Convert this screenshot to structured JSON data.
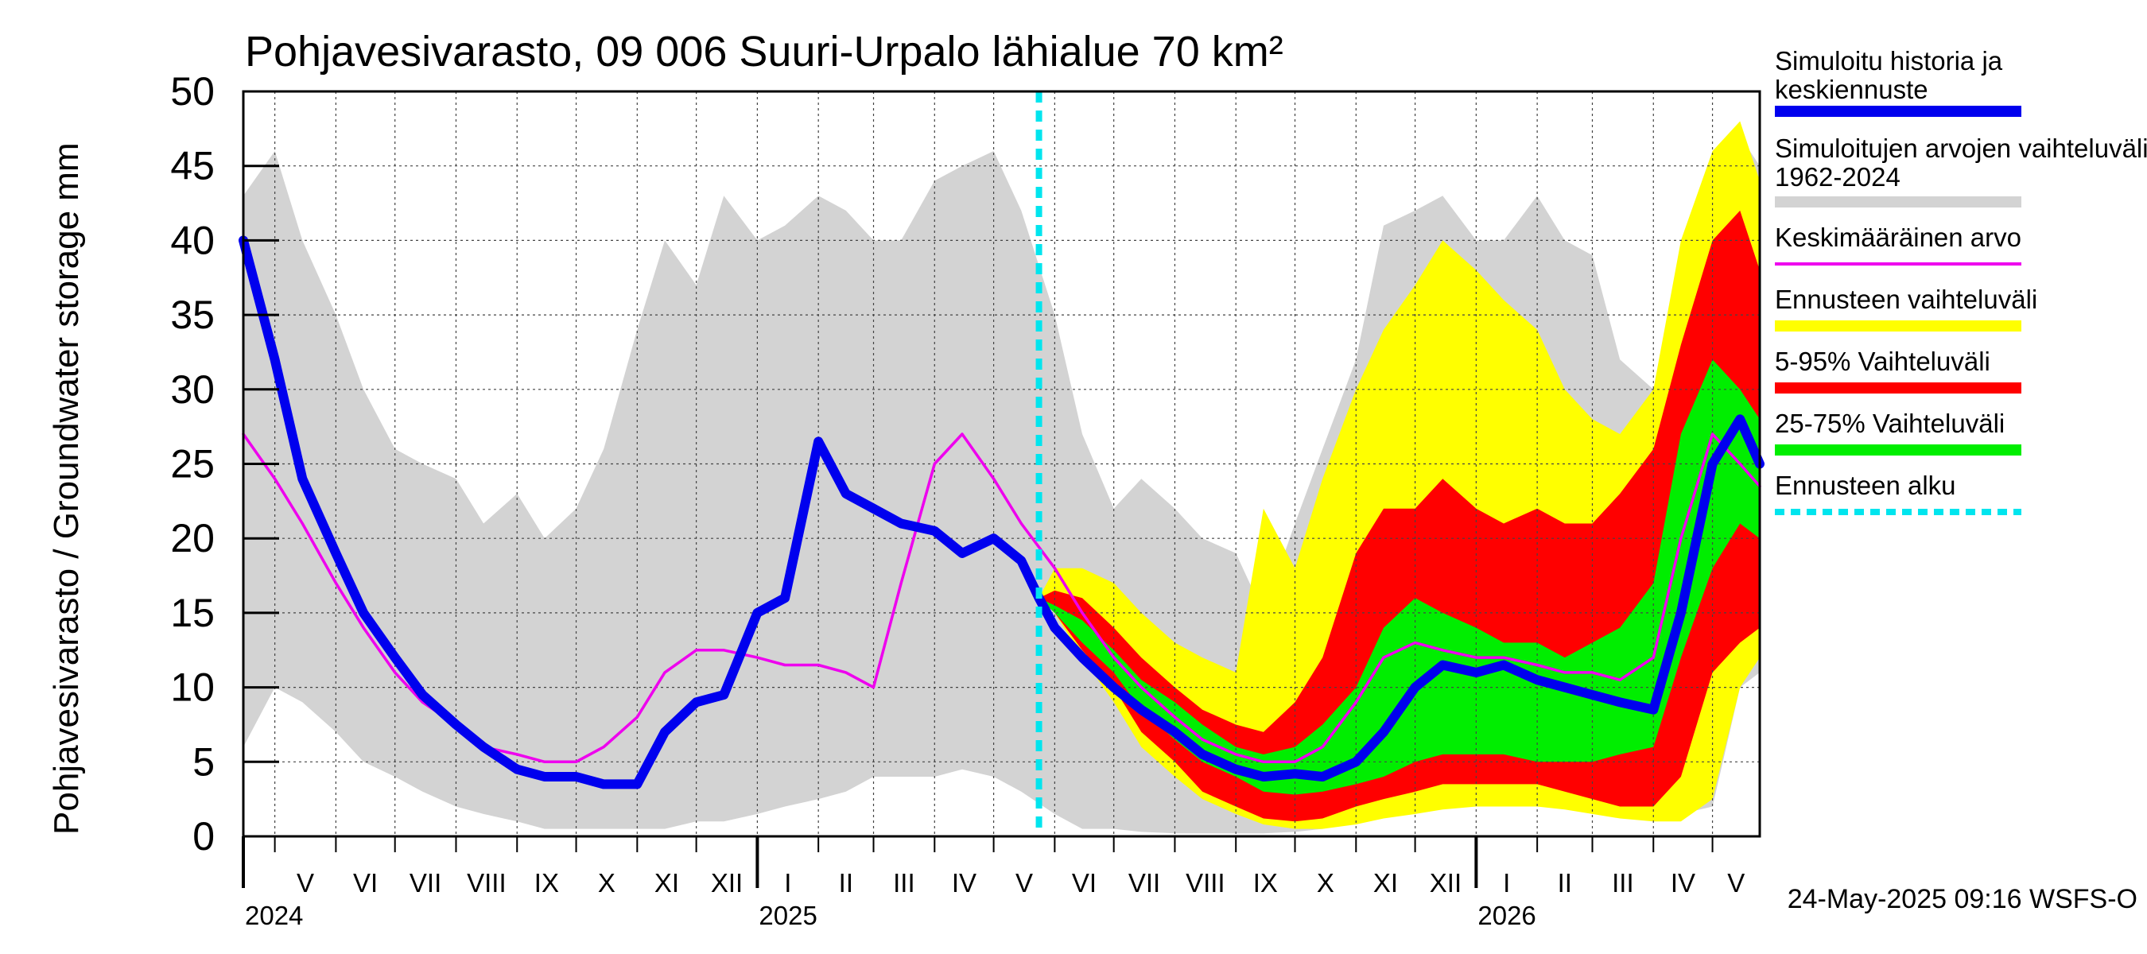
{
  "chart_data": {
    "type": "area",
    "title": "Pohjavesivarasto, 09 006 Suuri-Urpalo lähialue 70 km²",
    "ylabel": "Pohjavesivarasto / Groundwater storage   mm",
    "ylim": [
      0,
      50
    ],
    "yticks": [
      0,
      5,
      10,
      15,
      20,
      25,
      30,
      35,
      40,
      45,
      50
    ],
    "xlim": [
      "2024-04-15",
      "2026-05-25"
    ],
    "months": [
      {
        "label": "V",
        "start": "2024-05-01",
        "end": "2024-06-01"
      },
      {
        "label": "VI",
        "start": "2024-06-01",
        "end": "2024-07-01"
      },
      {
        "label": "VII",
        "start": "2024-07-01",
        "end": "2024-08-01"
      },
      {
        "label": "VIII",
        "start": "2024-08-01",
        "end": "2024-09-01"
      },
      {
        "label": "IX",
        "start": "2024-09-01",
        "end": "2024-10-01"
      },
      {
        "label": "X",
        "start": "2024-10-01",
        "end": "2024-11-01"
      },
      {
        "label": "XI",
        "start": "2024-11-01",
        "end": "2024-12-01"
      },
      {
        "label": "XII",
        "start": "2024-12-01",
        "end": "2025-01-01"
      },
      {
        "label": "I",
        "start": "2025-01-01",
        "end": "2025-02-01"
      },
      {
        "label": "II",
        "start": "2025-02-01",
        "end": "2025-03-01"
      },
      {
        "label": "III",
        "start": "2025-03-01",
        "end": "2025-04-01"
      },
      {
        "label": "IV",
        "start": "2025-04-01",
        "end": "2025-05-01"
      },
      {
        "label": "V",
        "start": "2025-05-01",
        "end": "2025-06-01"
      },
      {
        "label": "VI",
        "start": "2025-06-01",
        "end": "2025-07-01"
      },
      {
        "label": "VII",
        "start": "2025-07-01",
        "end": "2025-08-01"
      },
      {
        "label": "VIII",
        "start": "2025-08-01",
        "end": "2025-09-01"
      },
      {
        "label": "IX",
        "start": "2025-09-01",
        "end": "2025-10-01"
      },
      {
        "label": "X",
        "start": "2025-10-01",
        "end": "2025-11-01"
      },
      {
        "label": "XI",
        "start": "2025-11-01",
        "end": "2025-12-01"
      },
      {
        "label": "XII",
        "start": "2025-12-01",
        "end": "2026-01-01"
      },
      {
        "label": "I",
        "start": "2026-01-01",
        "end": "2026-02-01"
      },
      {
        "label": "II",
        "start": "2026-02-01",
        "end": "2026-03-01"
      },
      {
        "label": "III",
        "start": "2026-03-01",
        "end": "2026-04-01"
      },
      {
        "label": "IV",
        "start": "2026-04-01",
        "end": "2026-05-01"
      },
      {
        "label": "V",
        "start": "2026-05-01",
        "end": "2026-05-25"
      }
    ],
    "years": [
      {
        "label": "2024",
        "date": "2024-04-15"
      },
      {
        "label": "2025",
        "date": "2025-01-01"
      },
      {
        "label": "2026",
        "date": "2026-01-01"
      }
    ],
    "forecast_start": "2025-05-24",
    "grid": true,
    "legend_position": "right",
    "timestamp": "24-May-2025 09:16 WSFS-O",
    "colors": {
      "history": "#0000ee",
      "range": "#d3d3d3",
      "mean": "#ee00ee",
      "forecast_range": "#ffff00",
      "p5_95": "#ff0000",
      "p25_75": "#00ee00",
      "forecast_start": "#00e5ee"
    },
    "legend": [
      {
        "key": "history",
        "label": "Simuloitu historia ja keskiennuste"
      },
      {
        "key": "range",
        "label": "Simuloitujen arvojen vaihteluväli 1962-2024"
      },
      {
        "key": "mean",
        "label": "Keskimääräinen arvo"
      },
      {
        "key": "forecast_range",
        "label": "Ennusteen vaihteluväli"
      },
      {
        "key": "p5_95",
        "label": "5-95% Vaihteluväli"
      },
      {
        "key": "p25_75",
        "label": "25-75% Vaihteluväli"
      },
      {
        "key": "forecast_start",
        "label": "Ennusteen alku"
      }
    ],
    "series": {
      "range": {
        "x": [
          "2024-04-15",
          "2024-05-01",
          "2024-05-15",
          "2024-06-01",
          "2024-06-15",
          "2024-07-01",
          "2024-07-15",
          "2024-08-01",
          "2024-08-15",
          "2024-09-01",
          "2024-09-15",
          "2024-10-01",
          "2024-10-15",
          "2024-11-01",
          "2024-11-15",
          "2024-12-01",
          "2024-12-15",
          "2025-01-01",
          "2025-01-15",
          "2025-02-01",
          "2025-02-15",
          "2025-03-01",
          "2025-03-15",
          "2025-04-01",
          "2025-04-15",
          "2025-05-01",
          "2025-05-15",
          "2025-06-01",
          "2025-06-15",
          "2025-07-01",
          "2025-07-15",
          "2025-08-01",
          "2025-08-15",
          "2025-09-01",
          "2025-09-15",
          "2025-10-01",
          "2025-10-15",
          "2025-11-01",
          "2025-11-15",
          "2025-12-01",
          "2025-12-15",
          "2026-01-01",
          "2026-01-15",
          "2026-02-01",
          "2026-02-15",
          "2026-03-01",
          "2026-03-15",
          "2026-04-01",
          "2026-04-15",
          "2026-05-01",
          "2026-05-15",
          "2026-05-25"
        ],
        "lower": [
          6,
          10,
          9,
          7,
          5,
          4,
          3,
          2,
          1.5,
          1,
          0.5,
          0.5,
          0.5,
          0.5,
          0.5,
          1,
          1,
          1.5,
          2,
          2.5,
          3,
          4,
          4,
          4,
          4.5,
          4,
          3,
          1.5,
          0.5,
          0.5,
          0.3,
          0.2,
          0.2,
          0.2,
          0.2,
          0.3,
          0.5,
          1,
          1.5,
          2,
          2,
          2,
          2,
          2,
          2,
          2,
          1.5,
          1.5,
          1.5,
          2,
          10,
          11
        ],
        "upper": [
          43,
          46,
          40,
          35,
          30,
          26,
          25,
          24,
          21,
          23,
          20,
          22,
          26,
          34,
          40,
          37,
          43,
          40,
          41,
          43,
          42,
          40,
          40,
          44,
          45,
          46,
          42,
          35,
          27,
          22,
          24,
          22,
          20,
          19,
          15,
          21,
          26,
          32,
          41,
          42,
          43,
          40,
          40,
          43,
          40,
          39,
          32,
          30,
          31,
          33,
          47,
          45
        ]
      },
      "forecast_range": {
        "x": [
          "2025-05-24",
          "2025-06-01",
          "2025-06-15",
          "2025-07-01",
          "2025-07-15",
          "2025-08-01",
          "2025-08-15",
          "2025-09-01",
          "2025-09-15",
          "2025-10-01",
          "2025-10-15",
          "2025-11-01",
          "2025-11-15",
          "2025-12-01",
          "2025-12-15",
          "2026-01-01",
          "2026-01-15",
          "2026-02-01",
          "2026-02-15",
          "2026-03-01",
          "2026-03-15",
          "2026-04-01",
          "2026-04-15",
          "2026-05-01",
          "2026-05-15",
          "2026-05-25"
        ],
        "lower": [
          16,
          15,
          12,
          9,
          6,
          4,
          2.5,
          1.5,
          0.8,
          0.5,
          0.5,
          0.8,
          1.2,
          1.5,
          1.8,
          2,
          2,
          2,
          1.8,
          1.5,
          1.2,
          1,
          1,
          2.5,
          10,
          12
        ],
        "upper": [
          16,
          18,
          18,
          17,
          15,
          13,
          12,
          11,
          22,
          18,
          24,
          30,
          34,
          37,
          40,
          38,
          36,
          34,
          30,
          28,
          27,
          30,
          40,
          46,
          48,
          44
        ]
      },
      "p5_95": {
        "x": [
          "2025-05-24",
          "2025-06-01",
          "2025-06-15",
          "2025-07-01",
          "2025-07-15",
          "2025-08-01",
          "2025-08-15",
          "2025-09-01",
          "2025-09-15",
          "2025-10-01",
          "2025-10-15",
          "2025-11-01",
          "2025-11-15",
          "2025-12-01",
          "2025-12-15",
          "2026-01-01",
          "2026-01-15",
          "2026-02-01",
          "2026-02-15",
          "2026-03-01",
          "2026-03-15",
          "2026-04-01",
          "2026-04-15",
          "2026-05-01",
          "2026-05-15",
          "2026-05-25"
        ],
        "lower": [
          16,
          15,
          12.5,
          10,
          7,
          5,
          3,
          2,
          1.2,
          1,
          1.2,
          2,
          2.5,
          3,
          3.5,
          3.5,
          3.5,
          3.5,
          3,
          2.5,
          2,
          2,
          4,
          11,
          13,
          14
        ],
        "upper": [
          16,
          16.5,
          16,
          14,
          12,
          10,
          8.5,
          7.5,
          7,
          9,
          12,
          19,
          22,
          22,
          24,
          22,
          21,
          22,
          21,
          21,
          23,
          26,
          33,
          40,
          42,
          38
        ]
      },
      "p25_75": {
        "x": [
          "2025-05-24",
          "2025-06-01",
          "2025-06-15",
          "2025-07-01",
          "2025-07-15",
          "2025-08-01",
          "2025-08-15",
          "2025-09-01",
          "2025-09-15",
          "2025-10-01",
          "2025-10-15",
          "2025-11-01",
          "2025-11-15",
          "2025-12-01",
          "2025-12-15",
          "2026-01-01",
          "2026-01-15",
          "2026-02-01",
          "2026-02-15",
          "2026-03-01",
          "2026-03-15",
          "2026-04-01",
          "2026-04-15",
          "2026-05-01",
          "2026-05-15",
          "2026-05-25"
        ],
        "lower": [
          16,
          15,
          13,
          11,
          8.5,
          6.5,
          5,
          4,
          3,
          2.8,
          3,
          3.5,
          4,
          5,
          5.5,
          5.5,
          5.5,
          5,
          5,
          5,
          5.5,
          6,
          12,
          18,
          21,
          20
        ],
        "upper": [
          16,
          15.5,
          14.5,
          12.5,
          10.5,
          9,
          7.5,
          6,
          5.5,
          6,
          7.5,
          10,
          14,
          16,
          15,
          14,
          13,
          13,
          12,
          13,
          14,
          17,
          27,
          32,
          30,
          28
        ]
      },
      "mean": {
        "x": [
          "2024-04-15",
          "2024-05-01",
          "2024-05-15",
          "2024-06-01",
          "2024-06-15",
          "2024-07-01",
          "2024-07-15",
          "2024-08-01",
          "2024-08-15",
          "2024-09-01",
          "2024-09-15",
          "2024-10-01",
          "2024-10-15",
          "2024-11-01",
          "2024-11-15",
          "2024-12-01",
          "2024-12-15",
          "2025-01-01",
          "2025-01-15",
          "2025-02-01",
          "2025-02-15",
          "2025-03-01",
          "2025-03-15",
          "2025-04-01",
          "2025-04-15",
          "2025-05-01",
          "2025-05-15",
          "2025-06-01",
          "2025-06-15",
          "2025-07-01",
          "2025-07-15",
          "2025-08-01",
          "2025-08-15",
          "2025-09-01",
          "2025-09-15",
          "2025-10-01",
          "2025-10-15",
          "2025-11-01",
          "2025-11-15",
          "2025-12-01",
          "2025-12-15",
          "2026-01-01",
          "2026-01-15",
          "2026-02-01",
          "2026-02-15",
          "2026-03-01",
          "2026-03-15",
          "2026-04-01",
          "2026-04-15",
          "2026-05-01",
          "2026-05-15",
          "2026-05-25"
        ],
        "values": [
          27,
          24,
          21,
          17,
          14,
          11,
          9,
          7.5,
          6,
          5.5,
          5,
          5,
          6,
          8,
          11,
          12.5,
          12.5,
          12,
          11.5,
          11.5,
          11,
          10,
          17,
          25,
          27,
          24,
          21,
          18,
          15,
          12,
          10,
          8,
          6.5,
          5.5,
          5,
          5,
          6,
          9,
          12,
          13,
          12.5,
          12,
          12,
          11.5,
          11,
          11,
          10.5,
          12,
          20,
          27,
          25,
          23.5
        ]
      },
      "history": {
        "x": [
          "2024-04-15",
          "2024-05-01",
          "2024-05-15",
          "2024-06-01",
          "2024-06-15",
          "2024-07-01",
          "2024-07-15",
          "2024-08-01",
          "2024-08-15",
          "2024-09-01",
          "2024-09-15",
          "2024-10-01",
          "2024-10-15",
          "2024-11-01",
          "2024-11-15",
          "2024-12-01",
          "2024-12-15",
          "2025-01-01",
          "2025-01-15",
          "2025-02-01",
          "2025-02-15",
          "2025-03-01",
          "2025-03-15",
          "2025-04-01",
          "2025-04-15",
          "2025-05-01",
          "2025-05-15",
          "2025-05-24",
          "2025-06-01",
          "2025-06-15",
          "2025-07-01",
          "2025-07-15",
          "2025-08-01",
          "2025-08-15",
          "2025-09-01",
          "2025-09-15",
          "2025-10-01",
          "2025-10-15",
          "2025-11-01",
          "2025-11-15",
          "2025-12-01",
          "2025-12-15",
          "2026-01-01",
          "2026-01-15",
          "2026-02-01",
          "2026-02-15",
          "2026-03-01",
          "2026-03-15",
          "2026-04-01",
          "2026-04-15",
          "2026-05-01",
          "2026-05-15",
          "2026-05-25"
        ],
        "values": [
          40,
          32,
          24,
          19,
          15,
          12,
          9.5,
          7.5,
          6,
          4.5,
          4,
          4,
          3.5,
          3.5,
          7,
          9,
          9.5,
          15,
          16,
          26.5,
          23,
          22,
          21,
          20.5,
          19,
          20,
          18.5,
          16,
          14,
          12,
          10,
          8.5,
          7,
          5.5,
          4.5,
          4,
          4.2,
          4,
          5,
          7,
          10,
          11.5,
          11,
          11.5,
          10.5,
          10,
          9.5,
          9,
          8.5,
          15,
          25,
          28,
          25
        ]
      }
    }
  }
}
